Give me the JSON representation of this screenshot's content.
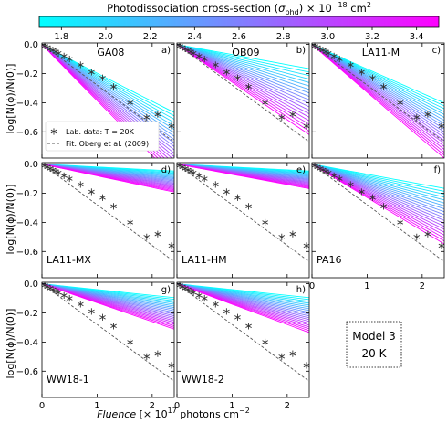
{
  "colorbar": {
    "label": "Photodissociation cross-section (σphd) × 10⁻¹⁸ cm²",
    "label_main": "Photodissociation cross-section (",
    "label_sym": "σ",
    "label_sub": "phd",
    "label_tail": ") × 10",
    "label_exp": "−18",
    "label_unit": " cm",
    "label_unit_exp": "2",
    "ticks": [
      "1.8",
      "2.0",
      "2.2",
      "2.4",
      "2.6",
      "2.8",
      "3.0",
      "3.2",
      "3.4"
    ],
    "tick_values": [
      1.8,
      2.0,
      2.2,
      2.4,
      2.6,
      2.8,
      3.0,
      3.2,
      3.4
    ],
    "range": [
      1.7,
      3.5
    ],
    "color_low": "#00ffff",
    "color_high": "#ff00ff"
  },
  "axes": {
    "ylabel": "log[N(ϕ)/N(0)]",
    "xlabel_italic": "Fluence",
    "xlabel_rest": " [× 10",
    "xlabel_exp": "17",
    "xlabel_unit": " photons cm",
    "xlabel_unit_exp": "−2",
    "x_ticks": [
      "0",
      "1",
      "2"
    ],
    "x_tick_values": [
      0,
      1,
      2
    ],
    "y_ticks": [
      "0.0",
      "−0.2",
      "−0.4",
      "−0.6"
    ],
    "y_tick_values": [
      0,
      -0.2,
      -0.4,
      -0.6
    ],
    "xlim": [
      0,
      2.4
    ],
    "ylim": [
      -0.78,
      0.01
    ]
  },
  "legend": {
    "lab_label": "Lab. data: T = 20K",
    "fit_label": "Fit: Oberg et al. (2009)"
  },
  "model_box": {
    "line1": "Model 3",
    "line2": "20 K"
  },
  "chart_data": {
    "type": "line",
    "title": "",
    "xlabel": "Fluence [× 10^17 photons cm^-2]",
    "ylabel": "log[N(ϕ)/N(0)]",
    "xlim": [
      0,
      2.4
    ],
    "ylim": [
      -0.78,
      0.01
    ],
    "lab_data": {
      "name": "Lab. data: T = 20K",
      "x": [
        0.05,
        0.1,
        0.15,
        0.2,
        0.25,
        0.3,
        0.4,
        0.5,
        0.7,
        0.9,
        1.1,
        1.3,
        1.6,
        1.9,
        2.1,
        2.35
      ],
      "y": [
        -0.01,
        -0.02,
        -0.03,
        -0.04,
        -0.05,
        -0.06,
        -0.08,
        -0.1,
        -0.14,
        -0.19,
        -0.23,
        -0.29,
        -0.4,
        -0.5,
        -0.48,
        -0.56
      ]
    },
    "fit": {
      "name": "Fit: Oberg et al. (2009)",
      "x": [
        0,
        2.4
      ],
      "y": [
        0,
        -0.67
      ]
    },
    "panels": [
      {
        "name": "GA08",
        "letter": "a)",
        "label_pos": "top",
        "slope_min": -0.2,
        "slope_max": -0.39,
        "curve": 0.18
      },
      {
        "name": "OB09",
        "letter": "b)",
        "label_pos": "top",
        "slope_min": -0.07,
        "slope_max": -0.26,
        "curve": 0.05
      },
      {
        "name": "LA11-M",
        "letter": "c)",
        "label_pos": "top",
        "slope_min": -0.17,
        "slope_max": -0.33,
        "curve": 0.1
      },
      {
        "name": "LA11-MX",
        "letter": "d)",
        "label_pos": "bottom",
        "slope_min": -0.02,
        "slope_max": -0.08,
        "curve": 0.0
      },
      {
        "name": "LA11-HM",
        "letter": "e)",
        "label_pos": "bottom",
        "slope_min": -0.02,
        "slope_max": -0.07,
        "curve": 0.0
      },
      {
        "name": "PA16",
        "letter": "f)",
        "label_pos": "bottom",
        "slope_min": -0.07,
        "slope_max": -0.23,
        "curve": 0.05
      },
      {
        "name": "WW18-1",
        "letter": "g)",
        "label_pos": "bottom",
        "slope_min": -0.04,
        "slope_max": -0.13,
        "curve": 0.02
      },
      {
        "name": "WW18-2",
        "letter": "h)",
        "label_pos": "bottom",
        "slope_min": -0.04,
        "slope_max": -0.14,
        "curve": 0.02
      }
    ]
  }
}
